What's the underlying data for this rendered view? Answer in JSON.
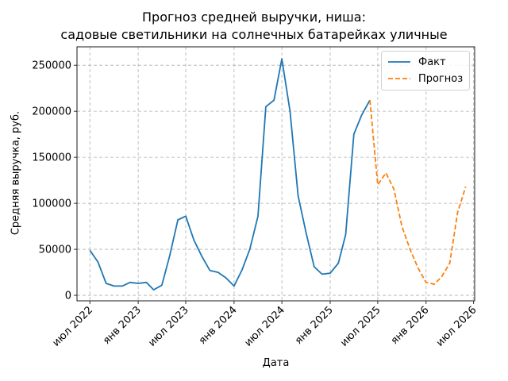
{
  "chart_data": {
    "type": "line",
    "title": "Прогноз средней выручки, ниша:\nсадовые светильники на солнечных батарейках уличные",
    "title_line1": "Прогноз средней выручки, ниша:",
    "title_line2": "садовые светильники на солнечных батарейках уличные",
    "xlabel": "Дата",
    "ylabel": "Средняя выручка, руб.",
    "xlim": [
      "2022-05-13",
      "2026-07-05"
    ],
    "ylim": [
      -6000,
      270000
    ],
    "yticks": [
      0,
      50000,
      100000,
      150000,
      200000,
      250000
    ],
    "xticks": [
      {
        "date": "2022-07-01",
        "label": "июл 2022"
      },
      {
        "date": "2023-01-01",
        "label": "янв 2023"
      },
      {
        "date": "2023-07-01",
        "label": "июл 2023"
      },
      {
        "date": "2024-01-01",
        "label": "янв 2024"
      },
      {
        "date": "2024-07-01",
        "label": "июл 2024"
      },
      {
        "date": "2025-01-01",
        "label": "янв 2025"
      },
      {
        "date": "2025-07-01",
        "label": "июл 2025"
      },
      {
        "date": "2026-01-01",
        "label": "янв 2026"
      },
      {
        "date": "2026-07-01",
        "label": "июл 2026"
      }
    ],
    "grid": true,
    "legend_position": "top-right",
    "series": [
      {
        "name": "Факт",
        "color": "#1f77b4",
        "style": "solid",
        "x": [
          "2022-07-01",
          "2022-08-01",
          "2022-09-01",
          "2022-10-01",
          "2022-11-01",
          "2022-12-01",
          "2023-01-01",
          "2023-02-01",
          "2023-03-01",
          "2023-04-01",
          "2023-05-01",
          "2023-06-01",
          "2023-07-01",
          "2023-08-01",
          "2023-09-01",
          "2023-10-01",
          "2023-11-01",
          "2023-12-01",
          "2024-01-01",
          "2024-02-01",
          "2024-03-01",
          "2024-04-01",
          "2024-05-01",
          "2024-06-01",
          "2024-07-01",
          "2024-08-01",
          "2024-09-01",
          "2024-10-01",
          "2024-11-01",
          "2024-12-01",
          "2025-01-01",
          "2025-02-01",
          "2025-03-01",
          "2025-04-01",
          "2025-05-01",
          "2025-06-01"
        ],
        "y": [
          49000,
          36000,
          13000,
          10000,
          10000,
          14000,
          13000,
          14000,
          6000,
          11000,
          43000,
          82000,
          86000,
          60000,
          42000,
          27000,
          25000,
          19000,
          10000,
          28000,
          50000,
          86000,
          205000,
          212000,
          257000,
          200000,
          108000,
          68000,
          31000,
          23000,
          24000,
          35000,
          66000,
          175000,
          196000,
          212000
        ]
      },
      {
        "name": "Прогноз",
        "color": "#ff7f0e",
        "style": "dashed",
        "x": [
          "2025-06-01",
          "2025-07-01",
          "2025-08-01",
          "2025-09-01",
          "2025-10-01",
          "2025-11-01",
          "2025-12-01",
          "2026-01-01",
          "2026-02-01",
          "2026-03-01",
          "2026-04-01",
          "2026-05-01",
          "2026-06-01"
        ],
        "y": [
          212000,
          120000,
          133000,
          115000,
          75000,
          50000,
          30000,
          14000,
          12000,
          20000,
          35000,
          90000,
          118000
        ]
      }
    ]
  }
}
